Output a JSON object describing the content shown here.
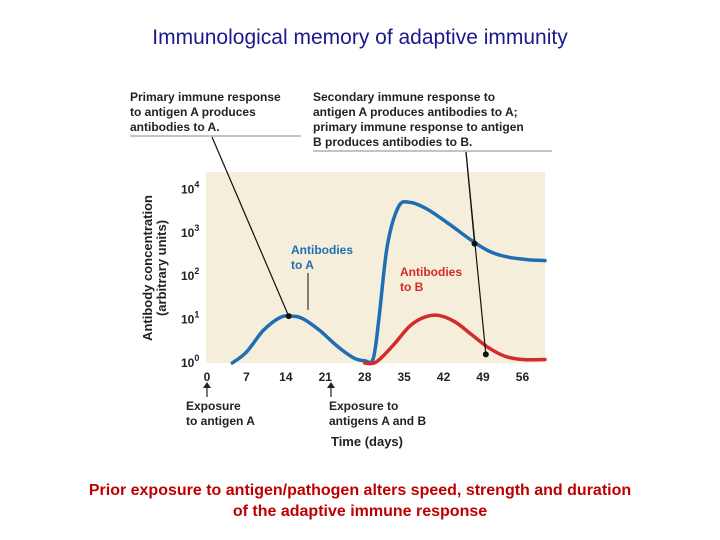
{
  "slide": {
    "title": "Immunological memory of adaptive immunity",
    "caption_line1": "Prior exposure to antigen/pathogen alters speed, strength and duration",
    "caption_line2": "of the adaptive immune response"
  },
  "colors": {
    "plot_bg": "#f4eeda",
    "antibodies_a": "#1f6eb5",
    "antibodies_b": "#d42a2a",
    "title": "#1a1a8c",
    "caption": "#c00000"
  },
  "chart_data": {
    "type": "line",
    "scale": "log",
    "xlabel": "Time (days)",
    "ylabel_line1": "Antibody concentration",
    "ylabel_line2": "(arbitrary units)",
    "x_ticks": [
      "0",
      "7",
      "14",
      "21",
      "28",
      "35",
      "42",
      "49",
      "56"
    ],
    "y_ticks": [
      {
        "base": "10",
        "exp": "0"
      },
      {
        "base": "10",
        "exp": "1"
      },
      {
        "base": "10",
        "exp": "2"
      },
      {
        "base": "10",
        "exp": "3"
      },
      {
        "base": "10",
        "exp": "4"
      }
    ],
    "xlim": [
      0,
      60
    ],
    "ylim_log10": [
      0,
      4.4
    ],
    "series": [
      {
        "name": "Antibodies to A",
        "label_line1": "Antibodies",
        "label_line2": "to A",
        "points": [
          [
            4.5,
            0
          ],
          [
            7,
            0.25
          ],
          [
            10,
            0.75
          ],
          [
            13,
            1.05
          ],
          [
            15,
            1.08
          ],
          [
            17,
            1.02
          ],
          [
            20,
            0.75
          ],
          [
            23,
            0.4
          ],
          [
            26,
            0.12
          ],
          [
            28,
            0.05
          ],
          [
            29.5,
            0.1
          ],
          [
            30.5,
            1.0
          ],
          [
            32,
            2.7
          ],
          [
            34,
            3.6
          ],
          [
            36,
            3.7
          ],
          [
            39,
            3.55
          ],
          [
            43,
            3.2
          ],
          [
            47,
            2.82
          ],
          [
            50,
            2.58
          ],
          [
            53,
            2.45
          ],
          [
            57,
            2.38
          ],
          [
            60,
            2.36
          ]
        ]
      },
      {
        "name": "Antibodies to B",
        "label_line1": "Antibodies",
        "label_line2": "to B",
        "points": [
          [
            28,
            0
          ],
          [
            30,
            0.02
          ],
          [
            33,
            0.4
          ],
          [
            36,
            0.85
          ],
          [
            38.5,
            1.05
          ],
          [
            41,
            1.1
          ],
          [
            44,
            0.95
          ],
          [
            47,
            0.65
          ],
          [
            50,
            0.35
          ],
          [
            53,
            0.15
          ],
          [
            56,
            0.08
          ],
          [
            60,
            0.08
          ]
        ]
      }
    ],
    "callouts": {
      "primary_line1": "Primary immune response",
      "primary_line2": "to antigen A produces",
      "primary_line3": "antibodies to A.",
      "secondary_line1": "Secondary immune response to",
      "secondary_line2": "antigen A produces antibodies to A;",
      "secondary_line3": "primary immune response to antigen",
      "secondary_line4": "B produces antibodies to B.",
      "exposure_a_line1": "Exposure",
      "exposure_a_line2": "to antigen A",
      "exposure_ab_line1": "Exposure to",
      "exposure_ab_line2": "antigens A and B"
    },
    "markers": [
      {
        "series": "Antibodies to A",
        "x": 14.5,
        "y_log10": 1.08
      },
      {
        "series": "Antibodies to A",
        "x": 47.5,
        "y_log10": 2.75
      },
      {
        "series": "Antibodies to B",
        "x": 49.5,
        "y_log10": 0.2
      }
    ]
  }
}
